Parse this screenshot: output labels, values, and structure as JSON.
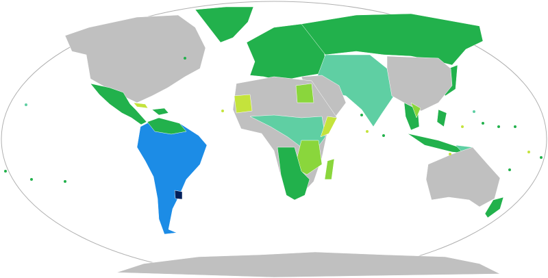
{
  "map": {
    "projection": "world-robinson-style",
    "colors": {
      "ocean": "#ffffff",
      "outline": "#b0b0b0",
      "no_data": "#c0c0c0",
      "green": "#22b14c",
      "teal": "#5fcfa3",
      "light_green": "#8ad63c",
      "yellow_green": "#c4e33c",
      "blue": "#1c8ce6",
      "navy": "#00205b"
    }
  }
}
